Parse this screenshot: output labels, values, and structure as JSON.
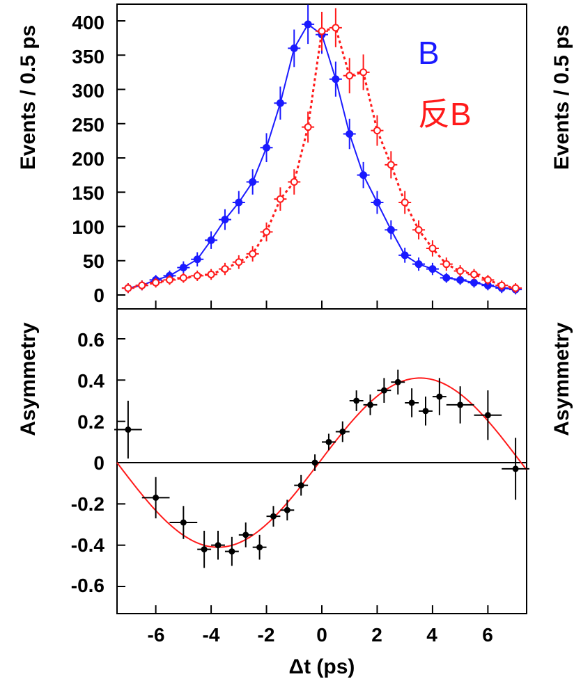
{
  "chart_data": [
    {
      "type": "scatter",
      "ylabel": "Events / 0.5 ps",
      "ylim": [
        0,
        420
      ],
      "xlim": [
        -7.4,
        7.4
      ],
      "yticks": [
        0,
        50,
        100,
        150,
        200,
        250,
        300,
        350,
        400
      ],
      "legend": [
        "B",
        "反B"
      ],
      "colors": {
        "B": "#1a1aff",
        "antiB": "#ff1a1a"
      },
      "series": [
        {
          "name": "B",
          "x": [
            -7.0,
            -6.5,
            -6.0,
            -5.5,
            -5.0,
            -4.5,
            -4.0,
            -3.5,
            -3.0,
            -2.5,
            -2.0,
            -1.5,
            -1.0,
            -0.5,
            0.0,
            0.5,
            1.0,
            1.5,
            2.0,
            2.5,
            3.0,
            3.5,
            4.0,
            4.5,
            5.0,
            5.5,
            6.0,
            6.5,
            7.0
          ],
          "y": [
            10,
            14,
            22,
            28,
            40,
            52,
            80,
            110,
            135,
            165,
            215,
            280,
            360,
            395,
            380,
            315,
            235,
            175,
            135,
            95,
            58,
            45,
            38,
            25,
            22,
            18,
            14,
            10,
            8
          ]
        },
        {
          "name": "反B",
          "x": [
            -7.0,
            -6.5,
            -6.0,
            -5.5,
            -5.0,
            -4.5,
            -4.0,
            -3.5,
            -3.0,
            -2.5,
            -2.0,
            -1.5,
            -1.0,
            -0.5,
            0.0,
            0.5,
            1.0,
            1.5,
            2.0,
            2.5,
            3.0,
            3.5,
            4.0,
            4.5,
            5.0,
            5.5,
            6.0,
            6.5,
            7.0
          ],
          "y": [
            10,
            14,
            18,
            22,
            25,
            28,
            30,
            38,
            48,
            60,
            92,
            140,
            165,
            245,
            385,
            390,
            320,
            325,
            240,
            190,
            135,
            95,
            68,
            45,
            35,
            30,
            22,
            14,
            10
          ]
        }
      ]
    },
    {
      "type": "scatter",
      "xlabel": "Δt (ps)",
      "ylabel": "Asymmetry",
      "xlim": [
        -7.4,
        7.4
      ],
      "ylim": [
        -0.75,
        0.75
      ],
      "xticks": [
        -6,
        -4,
        -2,
        0,
        2,
        4,
        6
      ],
      "yticks": [
        -0.6,
        -0.4,
        -0.2,
        0,
        0.2,
        0.4,
        0.6
      ],
      "xtick_labels": [
        "-6",
        "-4",
        "-2",
        "0",
        "2",
        "4",
        "6"
      ],
      "ytick_labels": [
        "-0.6",
        "-0.4",
        "-0.2",
        "0",
        "0.2",
        "0.4",
        "0.6"
      ],
      "series": [
        {
          "name": "",
          "x": [
            -7.0,
            -6.0,
            -5.0,
            -4.25,
            -3.75,
            -3.25,
            -2.75,
            -2.25,
            -1.75,
            -1.25,
            -0.75,
            -0.25,
            0.25,
            0.75,
            1.25,
            1.75,
            2.25,
            2.75,
            3.25,
            3.75,
            4.25,
            5.0,
            6.0,
            7.0
          ],
          "y": [
            0.16,
            -0.17,
            -0.29,
            -0.42,
            -0.4,
            -0.43,
            -0.35,
            -0.41,
            -0.26,
            -0.23,
            -0.11,
            -0.0,
            0.1,
            0.15,
            0.3,
            0.28,
            0.35,
            0.39,
            0.29,
            0.25,
            0.32,
            0.28,
            0.23,
            -0.03
          ],
          "yerr": [
            0.14,
            0.1,
            0.08,
            0.09,
            0.07,
            0.07,
            0.06,
            0.06,
            0.05,
            0.05,
            0.05,
            0.04,
            0.04,
            0.05,
            0.05,
            0.05,
            0.06,
            0.06,
            0.07,
            0.07,
            0.09,
            0.09,
            0.12,
            0.15
          ],
          "xerr": [
            0.5,
            0.5,
            0.5,
            0.25,
            0.25,
            0.25,
            0.25,
            0.25,
            0.25,
            0.25,
            0.25,
            0.25,
            0.25,
            0.25,
            0.25,
            0.25,
            0.25,
            0.25,
            0.25,
            0.25,
            0.25,
            0.5,
            0.5,
            0.5
          ]
        }
      ]
    }
  ],
  "labels": {
    "top_ylabel": "Events / 0.5 ps",
    "bottom_ylabel": "Asymmetry",
    "xlabel": "Δt (ps)",
    "legend_b": "B",
    "legend_antib": "反B",
    "top_yticks": [
      "0",
      "50",
      "100",
      "150",
      "200",
      "250",
      "300",
      "350",
      "400"
    ],
    "bottom_yticks": [
      "-0.6",
      "-0.4",
      "-0.2",
      "0",
      "0.2",
      "0.4",
      "0.6"
    ],
    "xticks": [
      "-6",
      "-4",
      "-2",
      "0",
      "2",
      "4",
      "6"
    ]
  }
}
